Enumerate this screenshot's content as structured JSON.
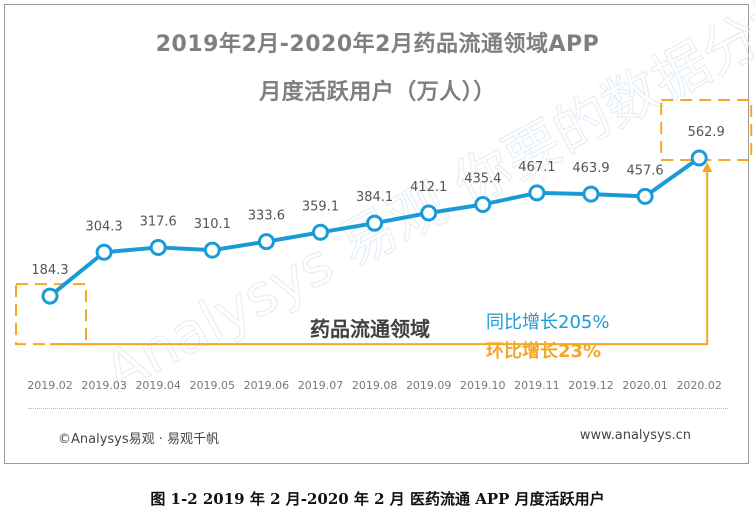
{
  "title_line1": "2019年2月-2020年2月药品流通领域APP",
  "title_line2": "月度活跃用户（万人））",
  "chart_data": {
    "type": "line",
    "categories": [
      "2019.02",
      "2019.03",
      "2019.04",
      "2019.05",
      "2019.06",
      "2019.07",
      "2019.08",
      "2019.09",
      "2019.10",
      "2019.11",
      "2019.12",
      "2020.01",
      "2020.02"
    ],
    "values": [
      184.3,
      304.3,
      317.6,
      310.1,
      333.6,
      359.1,
      384.1,
      412.1,
      435.4,
      467.1,
      463.9,
      457.6,
      562.9
    ],
    "ylim": [
      0,
      650
    ],
    "grid": false,
    "line_color": "#1a9ad6",
    "highlight_color": "#f5a623"
  },
  "annotation": {
    "category": "药品流通领域",
    "yoy": "同比增长205%",
    "mom": "环比增长23%",
    "yoy_color": "#1a9ad6",
    "mom_color": "#f5a623"
  },
  "watermark_text": "Analysys 易观  你要的数据分析",
  "footer": {
    "left": "©Analysys易观 · 易观千帆",
    "right": "www.analysys.cn"
  },
  "caption": "图 1-2 2019 年 2 月-2020 年 2 月 医药流通 APP 月度活跃用户"
}
